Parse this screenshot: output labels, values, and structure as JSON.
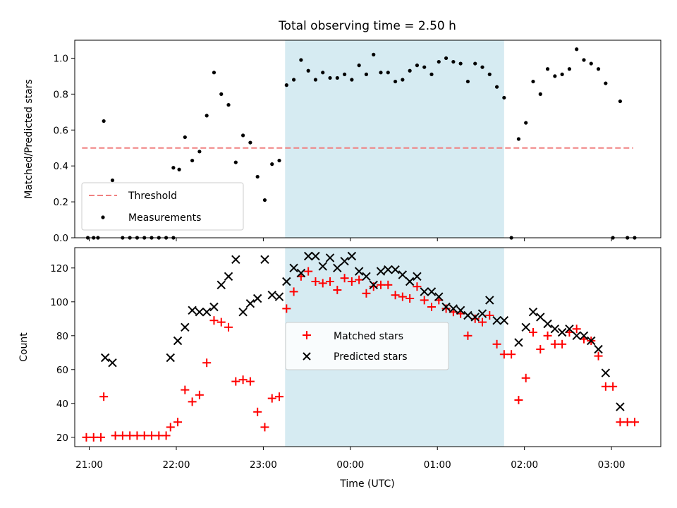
{
  "chart_data": [
    {
      "type": "scatter",
      "title": "Total observing time = 2.50 h",
      "xlabel": "",
      "ylabel": "Matched/Predicted stars",
      "xlim": [
        "20:50",
        "03:34"
      ],
      "ylim": [
        0,
        1.1
      ],
      "yticks": [
        "0.0",
        "0.2",
        "0.4",
        "0.6",
        "0.8",
        "1.0"
      ],
      "grid": false,
      "legend_position": "lower-left",
      "shaded_span": {
        "from": "23:15",
        "to": "01:46",
        "color": "#add8e6"
      },
      "threshold": {
        "name": "Threshold",
        "value": 0.5,
        "from": "20:55",
        "to": "03:15",
        "color": "#f08080",
        "style": "dashed"
      },
      "series": [
        {
          "name": "Measurements",
          "color": "#000000",
          "marker": "dot",
          "points": [
            [
              "20:59",
              0.0
            ],
            [
              "21:03",
              0.0
            ],
            [
              "21:06",
              0.0
            ],
            [
              "21:10",
              0.65
            ],
            [
              "21:16",
              0.32
            ],
            [
              "21:23",
              0.0
            ],
            [
              "21:28",
              0.0
            ],
            [
              "21:33",
              0.0
            ],
            [
              "21:38",
              0.0
            ],
            [
              "21:43",
              0.0
            ],
            [
              "21:48",
              0.0
            ],
            [
              "21:53",
              0.0
            ],
            [
              "21:58",
              0.0
            ],
            [
              "21:58",
              0.39
            ],
            [
              "22:02",
              0.38
            ],
            [
              "22:06",
              0.56
            ],
            [
              "22:11",
              0.43
            ],
            [
              "22:16",
              0.48
            ],
            [
              "22:21",
              0.68
            ],
            [
              "22:26",
              0.92
            ],
            [
              "22:31",
              0.8
            ],
            [
              "22:36",
              0.74
            ],
            [
              "22:41",
              0.42
            ],
            [
              "22:46",
              0.57
            ],
            [
              "22:51",
              0.53
            ],
            [
              "22:56",
              0.34
            ],
            [
              "23:01",
              0.21
            ],
            [
              "23:06",
              0.41
            ],
            [
              "23:11",
              0.43
            ],
            [
              "23:16",
              0.85
            ],
            [
              "23:21",
              0.88
            ],
            [
              "23:26",
              0.99
            ],
            [
              "23:31",
              0.93
            ],
            [
              "23:36",
              0.88
            ],
            [
              "23:41",
              0.92
            ],
            [
              "23:46",
              0.89
            ],
            [
              "23:51",
              0.89
            ],
            [
              "23:56",
              0.91
            ],
            [
              "00:01",
              0.88
            ],
            [
              "00:06",
              0.96
            ],
            [
              "00:11",
              0.91
            ],
            [
              "00:16",
              1.02
            ],
            [
              "00:21",
              0.92
            ],
            [
              "00:26",
              0.92
            ],
            [
              "00:31",
              0.87
            ],
            [
              "00:36",
              0.88
            ],
            [
              "00:41",
              0.93
            ],
            [
              "00:46",
              0.96
            ],
            [
              "00:51",
              0.95
            ],
            [
              "00:56",
              0.91
            ],
            [
              "01:01",
              0.98
            ],
            [
              "01:06",
              1.0
            ],
            [
              "01:11",
              0.98
            ],
            [
              "01:16",
              0.97
            ],
            [
              "01:21",
              0.87
            ],
            [
              "01:26",
              0.97
            ],
            [
              "01:31",
              0.95
            ],
            [
              "01:36",
              0.91
            ],
            [
              "01:41",
              0.84
            ],
            [
              "01:46",
              0.78
            ],
            [
              "01:51",
              0.0
            ],
            [
              "01:56",
              0.55
            ],
            [
              "02:01",
              0.64
            ],
            [
              "02:06",
              0.87
            ],
            [
              "02:11",
              0.8
            ],
            [
              "02:16",
              0.94
            ],
            [
              "02:21",
              0.9
            ],
            [
              "02:26",
              0.91
            ],
            [
              "02:31",
              0.94
            ],
            [
              "02:36",
              1.05
            ],
            [
              "02:41",
              0.99
            ],
            [
              "02:46",
              0.97
            ],
            [
              "02:51",
              0.94
            ],
            [
              "02:56",
              0.86
            ],
            [
              "03:01",
              0.0
            ],
            [
              "03:06",
              0.76
            ],
            [
              "03:11",
              0.0
            ],
            [
              "03:16",
              0.0
            ]
          ]
        }
      ]
    },
    {
      "type": "scatter",
      "title": "",
      "xlabel": "Time (UTC)",
      "ylabel": "Count",
      "xlim": [
        "20:50",
        "03:34"
      ],
      "ylim": [
        14.5,
        132
      ],
      "xticks": [
        "21:00",
        "22:00",
        "23:00",
        "00:00",
        "01:00",
        "02:00",
        "03:00"
      ],
      "yticks": [
        "20",
        "40",
        "60",
        "80",
        "100",
        "120"
      ],
      "grid": false,
      "legend_position": "center",
      "shaded_span": {
        "from": "23:15",
        "to": "01:46",
        "color": "#add8e6"
      },
      "series": [
        {
          "name": "Matched stars",
          "color": "#ff0000",
          "marker": "plus",
          "points": [
            [
              "20:58",
              20
            ],
            [
              "21:03",
              20
            ],
            [
              "21:08",
              20
            ],
            [
              "21:10",
              44
            ],
            [
              "21:18",
              21
            ],
            [
              "21:23",
              21
            ],
            [
              "21:28",
              21
            ],
            [
              "21:33",
              21
            ],
            [
              "21:38",
              21
            ],
            [
              "21:43",
              21
            ],
            [
              "21:48",
              21
            ],
            [
              "21:53",
              21
            ],
            [
              "21:56",
              26
            ],
            [
              "22:01",
              29
            ],
            [
              "22:06",
              48
            ],
            [
              "22:11",
              41
            ],
            [
              "22:16",
              45
            ],
            [
              "22:21",
              64
            ],
            [
              "22:26",
              89
            ],
            [
              "22:31",
              88
            ],
            [
              "22:36",
              85
            ],
            [
              "22:41",
              53
            ],
            [
              "22:46",
              54
            ],
            [
              "22:51",
              53
            ],
            [
              "22:56",
              35
            ],
            [
              "23:01",
              26
            ],
            [
              "23:06",
              43
            ],
            [
              "23:11",
              44
            ],
            [
              "23:16",
              96
            ],
            [
              "23:21",
              106
            ],
            [
              "23:26",
              115
            ],
            [
              "23:31",
              118
            ],
            [
              "23:36",
              112
            ],
            [
              "23:41",
              111
            ],
            [
              "23:46",
              112
            ],
            [
              "23:51",
              107
            ],
            [
              "23:56",
              114
            ],
            [
              "00:01",
              112
            ],
            [
              "00:06",
              113
            ],
            [
              "00:11",
              105
            ],
            [
              "00:16",
              109
            ],
            [
              "00:21",
              110
            ],
            [
              "00:26",
              110
            ],
            [
              "00:31",
              104
            ],
            [
              "00:36",
              103
            ],
            [
              "00:41",
              102
            ],
            [
              "00:46",
              109
            ],
            [
              "00:51",
              101
            ],
            [
              "00:56",
              97
            ],
            [
              "01:01",
              101
            ],
            [
              "01:06",
              96
            ],
            [
              "01:11",
              94
            ],
            [
              "01:16",
              93
            ],
            [
              "01:21",
              80
            ],
            [
              "01:26",
              90
            ],
            [
              "01:31",
              88
            ],
            [
              "01:36",
              92
            ],
            [
              "01:41",
              75
            ],
            [
              "01:46",
              69
            ],
            [
              "01:51",
              69
            ],
            [
              "01:56",
              42
            ],
            [
              "02:01",
              55
            ],
            [
              "02:06",
              82
            ],
            [
              "02:11",
              72
            ],
            [
              "02:16",
              80
            ],
            [
              "02:21",
              75
            ],
            [
              "02:26",
              75
            ],
            [
              "02:31",
              82
            ],
            [
              "02:36",
              84
            ],
            [
              "02:41",
              78
            ],
            [
              "02:46",
              77
            ],
            [
              "02:51",
              68
            ],
            [
              "02:56",
              50
            ],
            [
              "03:01",
              50
            ],
            [
              "03:06",
              29
            ],
            [
              "03:11",
              29
            ],
            [
              "03:16",
              29
            ]
          ]
        },
        {
          "name": "Predicted stars",
          "color": "#000000",
          "marker": "x",
          "points": [
            [
              "21:11",
              67
            ],
            [
              "21:16",
              64
            ],
            [
              "21:56",
              67
            ],
            [
              "22:01",
              77
            ],
            [
              "22:06",
              85
            ],
            [
              "22:11",
              95
            ],
            [
              "22:16",
              94
            ],
            [
              "22:21",
              94
            ],
            [
              "22:26",
              97
            ],
            [
              "22:31",
              110
            ],
            [
              "22:36",
              115
            ],
            [
              "22:41",
              125
            ],
            [
              "22:46",
              94
            ],
            [
              "22:51",
              99
            ],
            [
              "22:56",
              102
            ],
            [
              "23:01",
              125
            ],
            [
              "23:06",
              104
            ],
            [
              "23:11",
              103
            ],
            [
              "23:16",
              112
            ],
            [
              "23:21",
              120
            ],
            [
              "23:26",
              117
            ],
            [
              "23:31",
              127
            ],
            [
              "23:36",
              127
            ],
            [
              "23:41",
              121
            ],
            [
              "23:46",
              126
            ],
            [
              "23:51",
              120
            ],
            [
              "23:56",
              124
            ],
            [
              "00:01",
              127
            ],
            [
              "00:06",
              118
            ],
            [
              "00:11",
              115
            ],
            [
              "00:16",
              110
            ],
            [
              "00:21",
              118
            ],
            [
              "00:26",
              119
            ],
            [
              "00:31",
              119
            ],
            [
              "00:36",
              116
            ],
            [
              "00:41",
              112
            ],
            [
              "00:46",
              115
            ],
            [
              "00:51",
              106
            ],
            [
              "00:56",
              106
            ],
            [
              "01:01",
              103
            ],
            [
              "01:06",
              97
            ],
            [
              "01:11",
              96
            ],
            [
              "01:16",
              95
            ],
            [
              "01:21",
              92
            ],
            [
              "01:26",
              91
            ],
            [
              "01:31",
              93
            ],
            [
              "01:36",
              101
            ],
            [
              "01:41",
              89
            ],
            [
              "01:46",
              89
            ],
            [
              "01:56",
              76
            ],
            [
              "02:01",
              85
            ],
            [
              "02:06",
              94
            ],
            [
              "02:11",
              91
            ],
            [
              "02:16",
              87
            ],
            [
              "02:21",
              84
            ],
            [
              "02:26",
              82
            ],
            [
              "02:31",
              84
            ],
            [
              "02:36",
              80
            ],
            [
              "02:41",
              80
            ],
            [
              "02:46",
              77
            ],
            [
              "02:51",
              72
            ],
            [
              "02:56",
              58
            ],
            [
              "03:06",
              38
            ]
          ]
        }
      ]
    }
  ]
}
